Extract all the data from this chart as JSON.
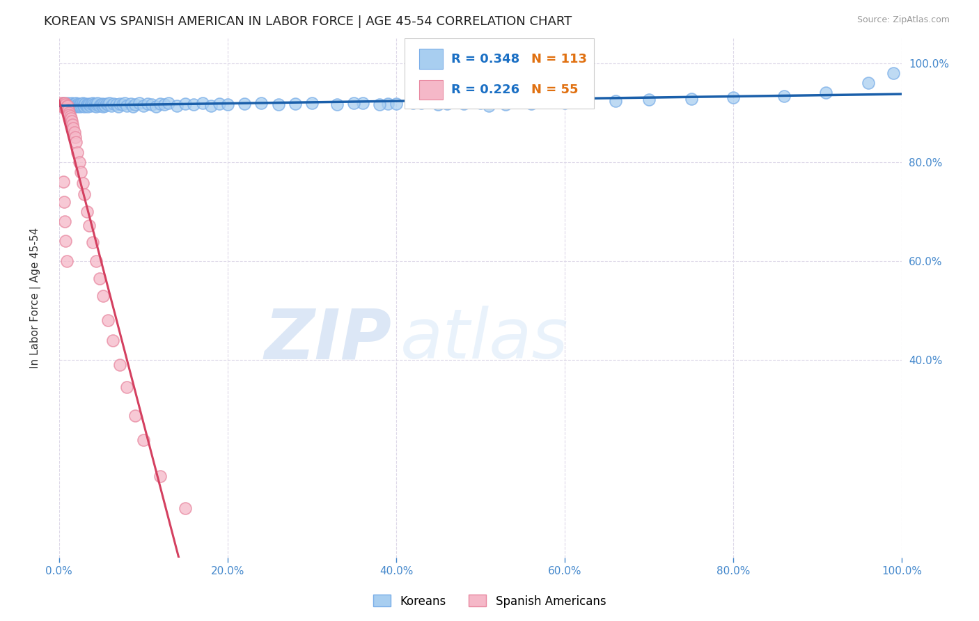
{
  "title": "KOREAN VS SPANISH AMERICAN IN LABOR FORCE | AGE 45-54 CORRELATION CHART",
  "source": "Source: ZipAtlas.com",
  "ylabel": "In Labor Force | Age 45-54",
  "xlim": [
    0.0,
    1.0
  ],
  "ylim": [
    0.0,
    1.05
  ],
  "korean_R": 0.348,
  "korean_N": 113,
  "spanish_R": 0.226,
  "spanish_N": 55,
  "korean_color": "#a8cef0",
  "korean_edge_color": "#7aaee8",
  "spanish_color": "#f5b8c8",
  "spanish_edge_color": "#e888a0",
  "korean_line_color": "#1a5faa",
  "spanish_line_color": "#d44060",
  "legend_korean_label": "Koreans",
  "legend_spanish_label": "Spanish Americans",
  "watermark_zip": "ZIP",
  "watermark_atlas": "atlas",
  "background_color": "#ffffff",
  "grid_color": "#ddd8e8",
  "title_fontsize": 13,
  "axis_label_fontsize": 11,
  "tick_fontsize": 11,
  "right_tick_color": "#4488cc",
  "bottom_tick_color": "#4488cc",
  "korean_x": [
    0.005,
    0.008,
    0.01,
    0.01,
    0.012,
    0.013,
    0.015,
    0.015,
    0.016,
    0.017,
    0.018,
    0.018,
    0.019,
    0.02,
    0.02,
    0.02,
    0.021,
    0.022,
    0.022,
    0.023,
    0.023,
    0.024,
    0.025,
    0.025,
    0.026,
    0.027,
    0.028,
    0.028,
    0.029,
    0.03,
    0.03,
    0.031,
    0.032,
    0.033,
    0.034,
    0.035,
    0.036,
    0.037,
    0.038,
    0.04,
    0.041,
    0.042,
    0.043,
    0.044,
    0.045,
    0.046,
    0.048,
    0.05,
    0.051,
    0.052,
    0.053,
    0.055,
    0.056,
    0.058,
    0.06,
    0.062,
    0.065,
    0.068,
    0.07,
    0.072,
    0.075,
    0.078,
    0.08,
    0.085,
    0.088,
    0.09,
    0.095,
    0.1,
    0.105,
    0.11,
    0.115,
    0.12,
    0.125,
    0.13,
    0.14,
    0.15,
    0.16,
    0.17,
    0.18,
    0.19,
    0.2,
    0.22,
    0.24,
    0.26,
    0.28,
    0.3,
    0.33,
    0.36,
    0.39,
    0.42,
    0.46,
    0.5,
    0.54,
    0.58,
    0.62,
    0.66,
    0.7,
    0.75,
    0.8,
    0.86,
    0.91,
    0.96,
    0.99,
    0.35,
    0.38,
    0.4,
    0.43,
    0.45,
    0.48,
    0.51,
    0.53,
    0.56,
    0.6
  ],
  "korean_y": [
    0.92,
    0.915,
    0.91,
    0.92,
    0.915,
    0.918,
    0.912,
    0.92,
    0.916,
    0.914,
    0.918,
    0.912,
    0.916,
    0.914,
    0.918,
    0.92,
    0.915,
    0.912,
    0.916,
    0.914,
    0.918,
    0.915,
    0.916,
    0.912,
    0.918,
    0.914,
    0.916,
    0.92,
    0.914,
    0.916,
    0.912,
    0.918,
    0.914,
    0.916,
    0.912,
    0.918,
    0.916,
    0.914,
    0.918,
    0.92,
    0.916,
    0.914,
    0.918,
    0.912,
    0.916,
    0.92,
    0.914,
    0.916,
    0.918,
    0.912,
    0.916,
    0.914,
    0.918,
    0.916,
    0.92,
    0.914,
    0.918,
    0.916,
    0.912,
    0.918,
    0.916,
    0.92,
    0.914,
    0.918,
    0.912,
    0.916,
    0.92,
    0.914,
    0.918,
    0.916,
    0.912,
    0.918,
    0.916,
    0.92,
    0.914,
    0.918,
    0.916,
    0.92,
    0.914,
    0.918,
    0.916,
    0.918,
    0.92,
    0.916,
    0.918,
    0.92,
    0.916,
    0.92,
    0.918,
    0.92,
    0.918,
    0.92,
    0.922,
    0.922,
    0.924,
    0.924,
    0.926,
    0.928,
    0.93,
    0.934,
    0.94,
    0.96,
    0.98,
    0.92,
    0.916,
    0.918,
    0.92,
    0.916,
    0.918,
    0.914,
    0.916,
    0.918,
    0.92
  ],
  "spanish_x": [
    0.002,
    0.003,
    0.004,
    0.004,
    0.005,
    0.005,
    0.006,
    0.006,
    0.006,
    0.007,
    0.007,
    0.007,
    0.008,
    0.008,
    0.008,
    0.009,
    0.009,
    0.01,
    0.01,
    0.01,
    0.011,
    0.012,
    0.012,
    0.013,
    0.014,
    0.015,
    0.016,
    0.017,
    0.018,
    0.019,
    0.02,
    0.022,
    0.024,
    0.026,
    0.028,
    0.03,
    0.033,
    0.036,
    0.04,
    0.044,
    0.048,
    0.052,
    0.058,
    0.064,
    0.072,
    0.08,
    0.09,
    0.1,
    0.12,
    0.15,
    0.005,
    0.006,
    0.007,
    0.008,
    0.009
  ],
  "spanish_y": [
    0.92,
    0.915,
    0.918,
    0.912,
    0.916,
    0.92,
    0.914,
    0.918,
    0.91,
    0.916,
    0.912,
    0.92,
    0.914,
    0.91,
    0.916,
    0.908,
    0.912,
    0.91,
    0.906,
    0.914,
    0.905,
    0.9,
    0.895,
    0.892,
    0.888,
    0.882,
    0.875,
    0.868,
    0.86,
    0.85,
    0.84,
    0.82,
    0.8,
    0.78,
    0.758,
    0.735,
    0.7,
    0.672,
    0.638,
    0.6,
    0.565,
    0.53,
    0.48,
    0.44,
    0.39,
    0.345,
    0.288,
    0.238,
    0.165,
    0.1,
    0.76,
    0.72,
    0.68,
    0.64,
    0.6
  ]
}
